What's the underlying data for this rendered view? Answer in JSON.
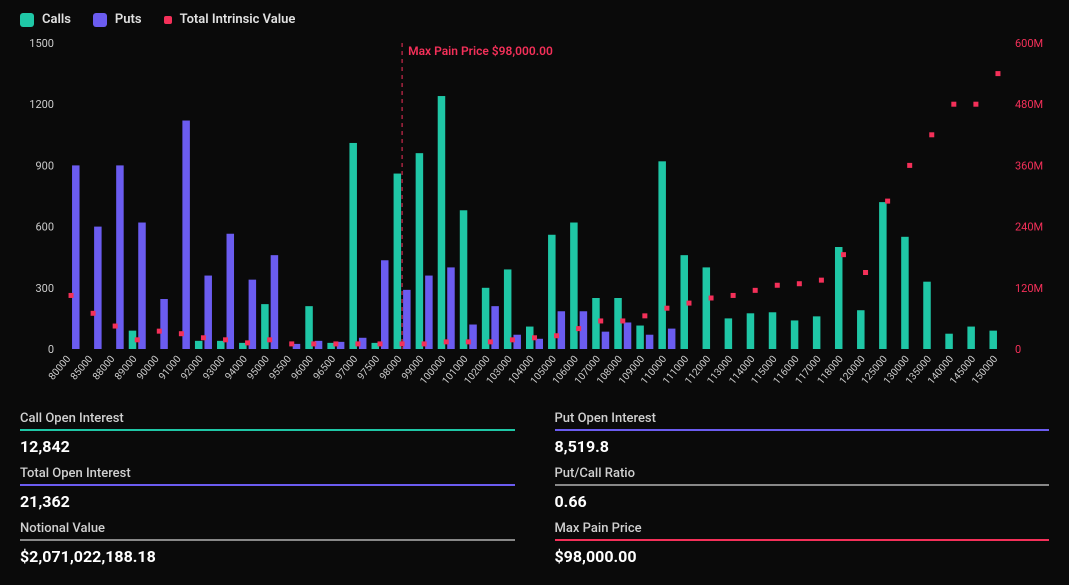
{
  "legend": {
    "calls": "Calls",
    "puts": "Puts",
    "tiv": "Total Intrinsic Value"
  },
  "colors": {
    "calls": "#1fc7a6",
    "puts": "#6b5cf0",
    "tiv": "#f43059",
    "bg": "#0a0a0a",
    "axis": "#cccccc",
    "stat_border_calls": "#1fc7a6",
    "stat_border_puts": "#6b5cf0",
    "stat_border_neutral": "#5a5a70",
    "stat_border_pink": "#f43059"
  },
  "chart": {
    "type": "bar+scatter",
    "y_left": {
      "min": 0,
      "max": 1500,
      "step": 300
    },
    "y_right": {
      "min": 0,
      "max": 600,
      "step": 120,
      "suffix": "M"
    },
    "max_pain": {
      "strike": "98000",
      "label": "Max Pain Price $98,000.00"
    },
    "strikes": [
      "80000",
      "85000",
      "88000",
      "89000",
      "90000",
      "91000",
      "92000",
      "93000",
      "94000",
      "95000",
      "95500",
      "96000",
      "96500",
      "97000",
      "97500",
      "98000",
      "99000",
      "100000",
      "101000",
      "102000",
      "103000",
      "104000",
      "105000",
      "106000",
      "107000",
      "108000",
      "109000",
      "110000",
      "111000",
      "112000",
      "113000",
      "114000",
      "115000",
      "116000",
      "117000",
      "118000",
      "120000",
      "125000",
      "130000",
      "135000",
      "140000",
      "145000",
      "150000"
    ],
    "calls": [
      0,
      0,
      0,
      90,
      0,
      0,
      40,
      40,
      30,
      220,
      0,
      210,
      30,
      1010,
      30,
      860,
      960,
      1240,
      680,
      300,
      390,
      110,
      560,
      620,
      250,
      250,
      115,
      920,
      460,
      400,
      150,
      175,
      180,
      140,
      160,
      500,
      190,
      720,
      550,
      330,
      75,
      110,
      90
    ],
    "puts": [
      900,
      600,
      900,
      620,
      245,
      1120,
      360,
      565,
      340,
      460,
      25,
      40,
      35,
      55,
      435,
      290,
      360,
      400,
      120,
      210,
      70,
      50,
      185,
      185,
      85,
      130,
      70,
      100,
      0,
      0,
      0,
      0,
      0,
      0,
      0,
      0,
      0,
      0,
      0,
      0,
      0,
      0,
      0
    ],
    "tiv": [
      105,
      70,
      45,
      18,
      35,
      30,
      22,
      18,
      12,
      18,
      10,
      10,
      10,
      10,
      10,
      10,
      10,
      14,
      14,
      14,
      18,
      22,
      26,
      40,
      55,
      55,
      65,
      80,
      90,
      100,
      105,
      115,
      125,
      128,
      135,
      185,
      150,
      290,
      360,
      420,
      480,
      480,
      540
    ]
  },
  "stats": [
    {
      "label": "Call Open Interest",
      "value": "12,842",
      "border": "#1fc7a6"
    },
    {
      "label": "Put Open Interest",
      "value": "8,519.8",
      "border": "#6b5cf0"
    },
    {
      "label": "Total Open Interest",
      "value": "21,362",
      "border": "#6b5cf0"
    },
    {
      "label": "Put/Call Ratio",
      "value": "0.66",
      "border": "#888888"
    },
    {
      "label": "Notional Value",
      "value": "$2,071,022,188.18",
      "border": "#888888"
    },
    {
      "label": "Max Pain Price",
      "value": "$98,000.00",
      "border": "#f43059"
    }
  ]
}
